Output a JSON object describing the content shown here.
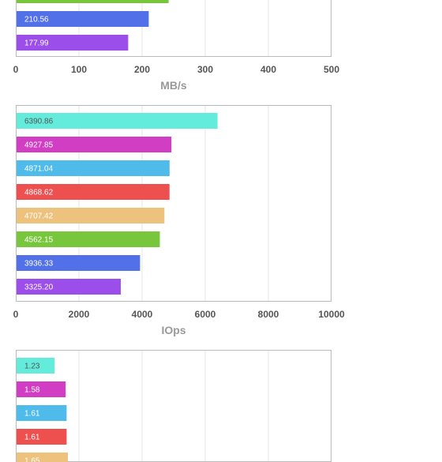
{
  "colors": {
    "gridline": "#e6e6e6",
    "plot_border": "#bbbbbb",
    "tick_text": "#555555",
    "axis_title_text": "#999999",
    "bar_label_dark": "#555555",
    "bar_label_light": "#ffffff"
  },
  "chart_data": [
    {
      "type": "bar",
      "orientation": "horizontal",
      "xlabel": "MB/s",
      "xlim": [
        0,
        500
      ],
      "xticks": [
        "0",
        "100",
        "200",
        "300",
        "400",
        "500"
      ],
      "bars": [
        {
          "value": 242,
          "label": "",
          "color": "#77c63c",
          "label_color": "#ffffff",
          "partial": "top"
        },
        {
          "value": 210.56,
          "label": "210.56",
          "color": "#5271e8",
          "label_color": "#ffffff"
        },
        {
          "value": 177.99,
          "label": "177.99",
          "color": "#9b4ee9",
          "label_color": "#ffffff"
        }
      ]
    },
    {
      "type": "bar",
      "orientation": "horizontal",
      "xlabel": "IOps",
      "xlim": [
        0,
        10000
      ],
      "xticks": [
        "0",
        "2000",
        "4000",
        "6000",
        "8000",
        "10000"
      ],
      "bars": [
        {
          "value": 6390.86,
          "label": "6390.86",
          "color": "#63ebdc",
          "label_color": "#555555"
        },
        {
          "value": 4927.85,
          "label": "4927.85",
          "color": "#d13ec3",
          "label_color": "#ffffff"
        },
        {
          "value": 4871.04,
          "label": "4871.04",
          "color": "#4fbbeb",
          "label_color": "#ffffff"
        },
        {
          "value": 4868.62,
          "label": "4868.62",
          "color": "#ee5050",
          "label_color": "#ffffff"
        },
        {
          "value": 4707.42,
          "label": "4707.42",
          "color": "#edc27d",
          "label_color": "#ffffff"
        },
        {
          "value": 4562.15,
          "label": "4562.15",
          "color": "#77c63c",
          "label_color": "#ffffff"
        },
        {
          "value": 3936.33,
          "label": "3936.33",
          "color": "#5271e8",
          "label_color": "#ffffff"
        },
        {
          "value": 3325.2,
          "label": "3325.20",
          "color": "#9b4ee9",
          "label_color": "#ffffff"
        }
      ]
    },
    {
      "type": "bar",
      "orientation": "horizontal",
      "xlabel": "",
      "xlim": [
        0,
        10
      ],
      "xticks": [],
      "bars": [
        {
          "value": 1.23,
          "label": "1.23",
          "color": "#63ebdc",
          "label_color": "#555555"
        },
        {
          "value": 1.58,
          "label": "1.58",
          "color": "#d13ec3",
          "label_color": "#ffffff"
        },
        {
          "value": 1.61,
          "label": "1.61",
          "color": "#4fbbeb",
          "label_color": "#ffffff"
        },
        {
          "value": 1.61,
          "label": "1.61",
          "color": "#ee5050",
          "label_color": "#ffffff"
        },
        {
          "value": 1.65,
          "label": "1.65",
          "color": "#edc27d",
          "label_color": "#ffffff",
          "partial": "bottom"
        }
      ]
    }
  ]
}
